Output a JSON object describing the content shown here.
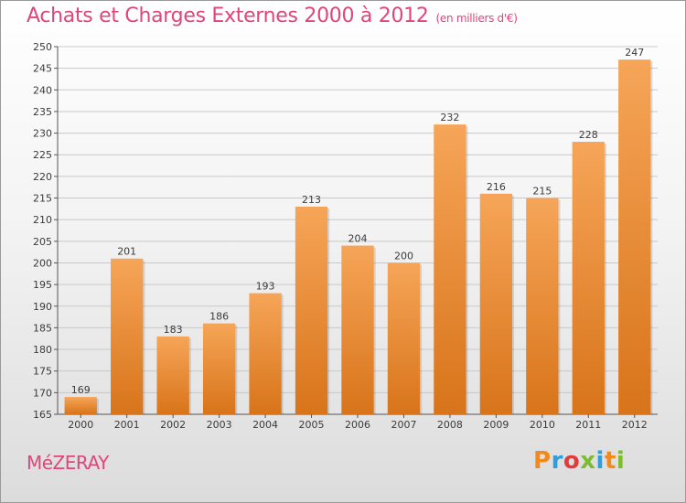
{
  "header": {
    "title": "Achats et Charges Externes 2000 à 2012",
    "subtitle": "(en milliers d'€)"
  },
  "footer": {
    "town": "MéZERAY",
    "logo_letters": [
      "P",
      "r",
      "o",
      "x",
      "i",
      "t",
      "i"
    ],
    "logo_colors": [
      "#f08a1c",
      "#2e9fdc",
      "#e23b3b",
      "#7bbd2f",
      "#2e9fdc",
      "#f08a1c",
      "#7bbd2f"
    ]
  },
  "colors": {
    "bar_top": "#f6a558",
    "bar_bottom": "#d8741a",
    "title": "#e0457b"
  },
  "chart_data": {
    "type": "bar",
    "categories": [
      "2000",
      "2001",
      "2002",
      "2003",
      "2004",
      "2005",
      "2006",
      "2007",
      "2008",
      "2009",
      "2010",
      "2011",
      "2012"
    ],
    "values": [
      169,
      201,
      183,
      186,
      193,
      213,
      204,
      200,
      232,
      216,
      215,
      228,
      247
    ],
    "ylim": [
      165,
      250
    ],
    "yticks": [
      165,
      170,
      175,
      180,
      185,
      190,
      195,
      200,
      205,
      210,
      215,
      220,
      225,
      230,
      235,
      240,
      245,
      250
    ],
    "grid": true,
    "data_labels": true
  }
}
